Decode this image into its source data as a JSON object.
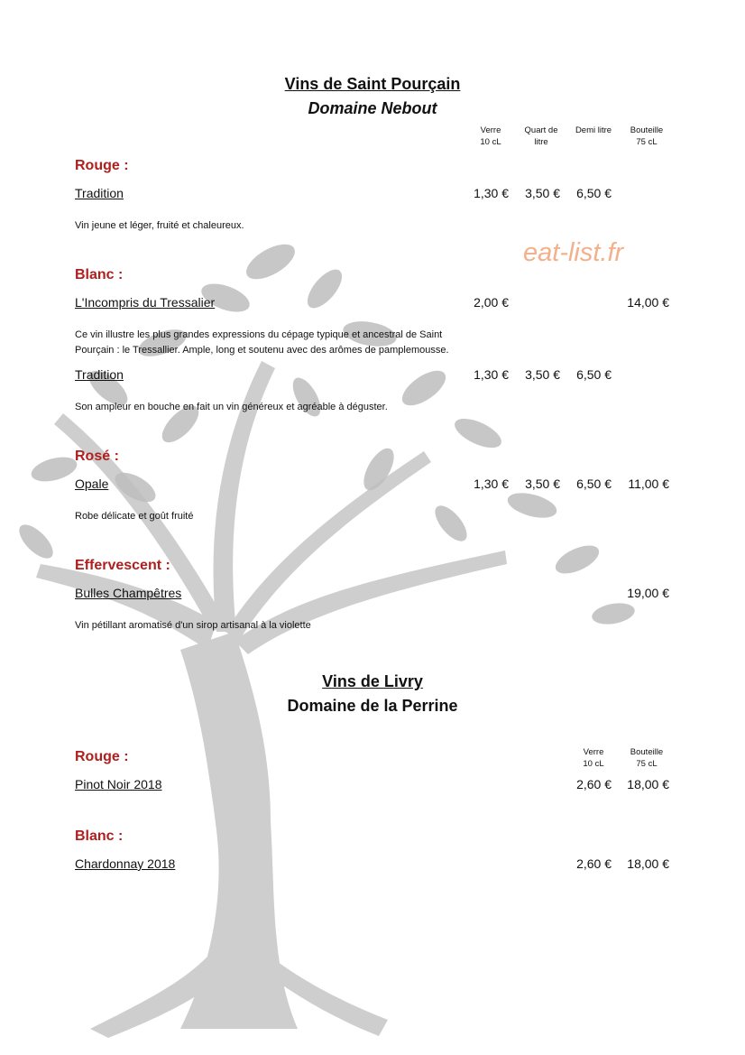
{
  "watermark": "eat-list.fr",
  "sections": [
    {
      "title": "Vins de Saint Pourçain",
      "subtitle": "Domaine Nebout",
      "columns": [
        [
          "Verre",
          "10 cL"
        ],
        [
          "Quart de",
          "litre"
        ],
        [
          "Demi litre"
        ],
        [
          "Bouteille",
          "75 cL"
        ]
      ],
      "groups": [
        {
          "label": "Rouge :",
          "wines": [
            {
              "name": "Tradition",
              "prices": [
                "1,30 €",
                "3,50 €",
                "6,50 €",
                null
              ],
              "description": "Vin jeune et léger, fruité et chaleureux."
            }
          ]
        },
        {
          "label": "Blanc :",
          "wines": [
            {
              "name": "L'Incompris du Tressalier",
              "prices": [
                "2,00 €",
                null,
                null,
                "14,00 €"
              ],
              "description": "Ce vin illustre les plus grandes expressions du cépage typique et ancestral de Saint Pourçain : le Tressallier. Ample, long et soutenu avec des arômes de pamplemousse."
            },
            {
              "name": "Tradition",
              "prices": [
                "1,30 €",
                "3,50 €",
                "6,50 €",
                null
              ],
              "description": "Son ampleur en bouche en fait un vin généreux et agréable à déguster."
            }
          ]
        },
        {
          "label": "Rosé :",
          "wines": [
            {
              "name": "Opale",
              "prices": [
                "1,30 €",
                "3,50 €",
                "6,50 €",
                "11,00 €"
              ],
              "description": "Robe délicate et goût fruité"
            }
          ]
        },
        {
          "label": "Effervescent :",
          "wines": [
            {
              "name": "Bulles Champêtres",
              "prices": [
                null,
                null,
                null,
                "19,00 €"
              ],
              "description": "Vin pétillant aromatisé d'un sirop artisanal à la violette"
            }
          ]
        }
      ]
    },
    {
      "title": "Vins de Livry",
      "subtitle": "Domaine de la Perrine",
      "columns": [
        [
          "Verre",
          "10 cL"
        ],
        [
          "Bouteille",
          "75 cL"
        ]
      ],
      "groups": [
        {
          "label": "Rouge :",
          "wines": [
            {
              "name": "Pinot Noir 2018",
              "prices": [
                "2,60 €",
                "18,00 €"
              ]
            }
          ]
        },
        {
          "label": "Blanc :",
          "wines": [
            {
              "name": "Chardonnay 2018",
              "prices": [
                "2,60 €",
                "18,00 €"
              ]
            }
          ]
        }
      ]
    }
  ]
}
